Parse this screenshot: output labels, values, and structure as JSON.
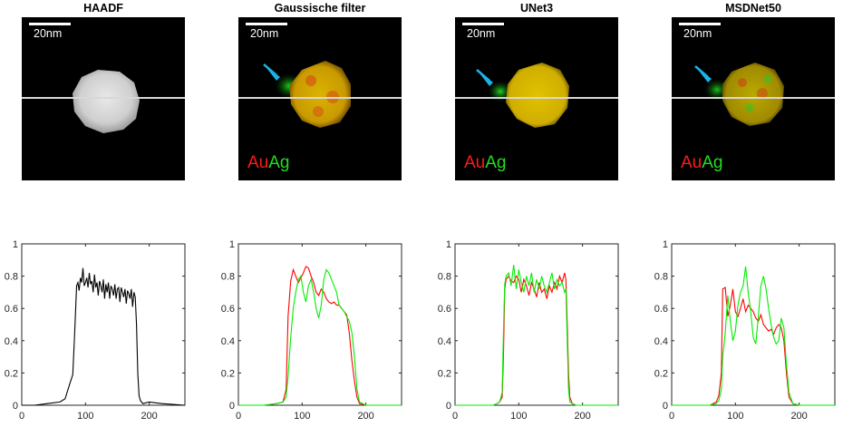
{
  "panels": [
    {
      "title": "HAADF",
      "scalebar_label": "20nm",
      "labels": null,
      "arrow": false
    },
    {
      "title": "Gaussische filter",
      "scalebar_label": "20nm",
      "labels": {
        "au": "Au",
        "ag": "Ag"
      },
      "arrow": true
    },
    {
      "title": "UNet3",
      "scalebar_label": "20nm",
      "labels": {
        "au": "Au",
        "ag": "Ag"
      },
      "arrow": true
    },
    {
      "title": "MSDNet50",
      "scalebar_label": "20nm",
      "labels": {
        "au": "Au",
        "ag": "Ag"
      },
      "arrow": true
    }
  ],
  "colors": {
    "au": "#ff0000",
    "ag": "#00ee00",
    "haadf": "#000000",
    "arrow": "#1ab3e6"
  },
  "chart_data": [
    {
      "type": "line",
      "title": "HAADF",
      "xlim": [
        0,
        256
      ],
      "ylim": [
        0,
        1
      ],
      "xticks": [
        0,
        100,
        200
      ],
      "yticks": [
        0,
        0.2,
        0.4,
        0.6,
        0.8,
        1
      ],
      "series": [
        {
          "color": "#000000",
          "x": [
            0,
            20,
            40,
            60,
            68,
            72,
            76,
            80,
            83,
            86,
            88,
            90,
            92,
            94,
            96,
            98,
            100,
            102,
            104,
            106,
            108,
            110,
            112,
            114,
            116,
            118,
            120,
            122,
            124,
            126,
            128,
            130,
            132,
            134,
            136,
            138,
            140,
            142,
            144,
            146,
            148,
            150,
            152,
            154,
            156,
            158,
            160,
            162,
            164,
            166,
            168,
            170,
            172,
            174,
            176,
            178,
            180,
            182,
            184,
            186,
            190,
            200,
            220,
            256
          ],
          "y": [
            0,
            0,
            0.01,
            0.02,
            0.04,
            0.09,
            0.14,
            0.19,
            0.45,
            0.74,
            0.76,
            0.71,
            0.79,
            0.76,
            0.85,
            0.74,
            0.76,
            0.79,
            0.73,
            0.82,
            0.75,
            0.77,
            0.7,
            0.81,
            0.73,
            0.76,
            0.68,
            0.77,
            0.74,
            0.7,
            0.78,
            0.66,
            0.75,
            0.7,
            0.76,
            0.66,
            0.74,
            0.72,
            0.68,
            0.75,
            0.66,
            0.72,
            0.73,
            0.64,
            0.73,
            0.7,
            0.67,
            0.72,
            0.63,
            0.71,
            0.69,
            0.66,
            0.72,
            0.61,
            0.7,
            0.67,
            0.5,
            0.2,
            0.06,
            0.03,
            0.01,
            0.02,
            0.01,
            0
          ]
        }
      ]
    },
    {
      "type": "line",
      "title": "Gaussische filter",
      "xlim": [
        0,
        256
      ],
      "ylim": [
        0,
        1
      ],
      "xticks": [
        0,
        100,
        200
      ],
      "yticks": [
        0,
        0.2,
        0.4,
        0.6,
        0.8,
        1
      ],
      "series": [
        {
          "name": "Au",
          "color": "#ff0000",
          "x": [
            0,
            40,
            60,
            70,
            75,
            78,
            82,
            86,
            90,
            94,
            98,
            102,
            106,
            110,
            114,
            118,
            122,
            126,
            130,
            134,
            138,
            142,
            146,
            150,
            154,
            158,
            162,
            166,
            170,
            174,
            178,
            182,
            186,
            190,
            200,
            220,
            256
          ],
          "y": [
            0,
            0,
            0.01,
            0.02,
            0.1,
            0.55,
            0.77,
            0.84,
            0.8,
            0.76,
            0.79,
            0.82,
            0.86,
            0.85,
            0.8,
            0.76,
            0.7,
            0.68,
            0.72,
            0.7,
            0.66,
            0.64,
            0.63,
            0.64,
            0.62,
            0.62,
            0.6,
            0.58,
            0.56,
            0.45,
            0.28,
            0.15,
            0.05,
            0.01,
            0,
            0,
            0
          ]
        },
        {
          "name": "Ag",
          "color": "#00ee00",
          "x": [
            0,
            40,
            60,
            70,
            75,
            78,
            82,
            86,
            90,
            94,
            98,
            102,
            106,
            110,
            114,
            118,
            122,
            126,
            130,
            134,
            138,
            142,
            146,
            150,
            154,
            158,
            162,
            166,
            170,
            174,
            178,
            182,
            186,
            190,
            200,
            220,
            256
          ],
          "y": [
            0,
            0,
            0.01,
            0.02,
            0.05,
            0.18,
            0.42,
            0.6,
            0.7,
            0.78,
            0.8,
            0.7,
            0.64,
            0.74,
            0.78,
            0.7,
            0.6,
            0.54,
            0.62,
            0.78,
            0.84,
            0.82,
            0.78,
            0.74,
            0.7,
            0.62,
            0.6,
            0.58,
            0.55,
            0.52,
            0.45,
            0.3,
            0.1,
            0.02,
            0,
            0,
            0
          ]
        }
      ]
    },
    {
      "type": "line",
      "title": "UNet3",
      "xlim": [
        0,
        256
      ],
      "ylim": [
        0,
        1
      ],
      "xticks": [
        0,
        100,
        200
      ],
      "yticks": [
        0,
        0.2,
        0.4,
        0.6,
        0.8,
        1
      ],
      "series": [
        {
          "name": "Au",
          "color": "#ff0000",
          "x": [
            0,
            40,
            60,
            66,
            70,
            74,
            76,
            78,
            80,
            84,
            88,
            92,
            96,
            100,
            104,
            108,
            112,
            116,
            120,
            124,
            128,
            132,
            136,
            140,
            144,
            148,
            152,
            156,
            160,
            164,
            168,
            172,
            174,
            176,
            178,
            180,
            184,
            190,
            200,
            220,
            256
          ],
          "y": [
            0,
            0,
            0,
            0.01,
            0.02,
            0.05,
            0.3,
            0.72,
            0.78,
            0.8,
            0.77,
            0.76,
            0.8,
            0.78,
            0.7,
            0.78,
            0.74,
            0.68,
            0.76,
            0.72,
            0.67,
            0.76,
            0.7,
            0.72,
            0.66,
            0.74,
            0.7,
            0.76,
            0.72,
            0.8,
            0.76,
            0.82,
            0.78,
            0.5,
            0.2,
            0.05,
            0.01,
            0,
            0,
            0,
            0
          ]
        },
        {
          "name": "Ag",
          "color": "#00ee00",
          "x": [
            0,
            40,
            60,
            66,
            70,
            74,
            76,
            78,
            80,
            84,
            88,
            92,
            96,
            100,
            104,
            108,
            112,
            116,
            120,
            124,
            128,
            132,
            136,
            140,
            144,
            148,
            152,
            156,
            160,
            164,
            168,
            172,
            174,
            176,
            178,
            180,
            184,
            190,
            200,
            220,
            256
          ],
          "y": [
            0,
            0,
            0,
            0.01,
            0.02,
            0.08,
            0.45,
            0.75,
            0.8,
            0.82,
            0.74,
            0.87,
            0.72,
            0.84,
            0.76,
            0.7,
            0.8,
            0.74,
            0.82,
            0.7,
            0.78,
            0.72,
            0.8,
            0.74,
            0.7,
            0.76,
            0.82,
            0.72,
            0.78,
            0.74,
            0.76,
            0.7,
            0.72,
            0.4,
            0.1,
            0.02,
            0.01,
            0,
            0,
            0,
            0
          ]
        }
      ]
    },
    {
      "type": "line",
      "title": "MSDNet50",
      "xlim": [
        0,
        256
      ],
      "ylim": [
        0,
        1
      ],
      "xticks": [
        0,
        100,
        200
      ],
      "yticks": [
        0,
        0.2,
        0.4,
        0.6,
        0.8,
        1
      ],
      "series": [
        {
          "name": "Au",
          "color": "#ff0000",
          "x": [
            0,
            40,
            60,
            70,
            74,
            78,
            80,
            84,
            88,
            92,
            96,
            100,
            104,
            108,
            112,
            116,
            120,
            124,
            128,
            132,
            136,
            140,
            144,
            148,
            152,
            156,
            160,
            164,
            168,
            172,
            176,
            180,
            184,
            190,
            200,
            220,
            256
          ],
          "y": [
            0,
            0,
            0,
            0.02,
            0.06,
            0.2,
            0.72,
            0.73,
            0.55,
            0.62,
            0.72,
            0.58,
            0.55,
            0.6,
            0.66,
            0.58,
            0.62,
            0.6,
            0.58,
            0.54,
            0.52,
            0.56,
            0.5,
            0.48,
            0.46,
            0.47,
            0.44,
            0.48,
            0.5,
            0.48,
            0.4,
            0.2,
            0.05,
            0.01,
            0,
            0,
            0
          ]
        },
        {
          "name": "Ag",
          "color": "#00ee00",
          "x": [
            0,
            40,
            60,
            70,
            74,
            78,
            80,
            84,
            88,
            92,
            96,
            100,
            104,
            108,
            112,
            116,
            120,
            124,
            128,
            132,
            136,
            140,
            144,
            148,
            152,
            156,
            160,
            164,
            168,
            172,
            176,
            180,
            184,
            190,
            200,
            220,
            256
          ],
          "y": [
            0,
            0,
            0,
            0.01,
            0.03,
            0.1,
            0.3,
            0.45,
            0.68,
            0.52,
            0.4,
            0.46,
            0.62,
            0.7,
            0.74,
            0.86,
            0.7,
            0.58,
            0.42,
            0.38,
            0.55,
            0.74,
            0.8,
            0.72,
            0.6,
            0.5,
            0.42,
            0.38,
            0.4,
            0.54,
            0.48,
            0.25,
            0.08,
            0.01,
            0,
            0,
            0
          ]
        }
      ]
    }
  ]
}
